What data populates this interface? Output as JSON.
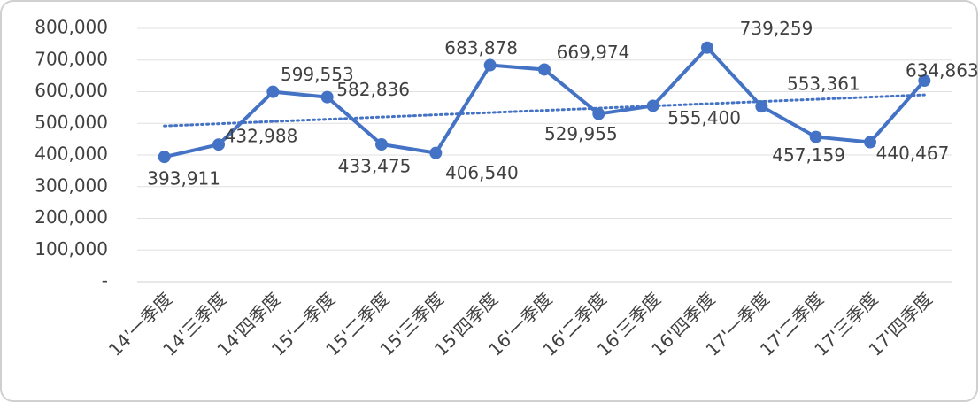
{
  "chart_data": {
    "type": "line",
    "categories": [
      "14'一季度",
      "14'三季度",
      "14'四季度",
      "15'一季度",
      "15'二季度",
      "15'三季度",
      "15'四季度",
      "16'一季度",
      "16'二季度",
      "16'三季度",
      "16'四季度",
      "17'一季度",
      "17'二季度",
      "17'三季度",
      "17'四季度"
    ],
    "series": [
      {
        "color": "#4472c4",
        "values": [
          393911,
          432988,
          599553,
          582836,
          433475,
          406540,
          683878,
          669974,
          529955,
          555400,
          739259,
          553361,
          457159,
          440467,
          634863
        ],
        "value_labels": [
          "393,911",
          "432,988",
          "599,553",
          "582,836",
          "433,475",
          "406,540",
          "683,878",
          "669,974",
          "529,955",
          "555,400",
          "739,259",
          "553,361",
          "457,159",
          "440,467",
          "634,863"
        ]
      }
    ],
    "ylim": [
      0,
      800000
    ],
    "yticks": [
      {
        "value": 0,
        "label": "-"
      },
      {
        "value": 100000,
        "label": "100,000"
      },
      {
        "value": 200000,
        "label": "200,000"
      },
      {
        "value": 300000,
        "label": "300,000"
      },
      {
        "value": 400000,
        "label": "400,000"
      },
      {
        "value": 500000,
        "label": "500,000"
      },
      {
        "value": 600000,
        "label": "600,000"
      },
      {
        "value": 700000,
        "label": "700,000"
      },
      {
        "value": 800000,
        "label": "800,000"
      }
    ],
    "grid": true,
    "trendline": true
  }
}
